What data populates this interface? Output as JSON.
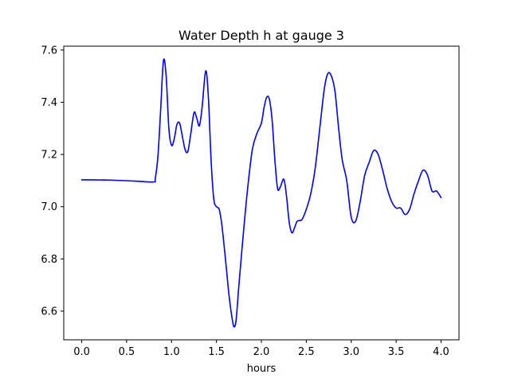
{
  "chart_data": {
    "type": "line",
    "title": "Water Depth h at gauge 3",
    "xlabel": "hours",
    "ylabel": "",
    "xlim": [
      -0.2,
      4.2
    ],
    "ylim": [
      6.49,
      7.615
    ],
    "xticks": [
      0.0,
      0.5,
      1.0,
      1.5,
      2.0,
      2.5,
      3.0,
      3.5,
      4.0
    ],
    "xtick_labels": [
      "0.0",
      "0.5",
      "1.0",
      "1.5",
      "2.0",
      "2.5",
      "3.0",
      "3.5",
      "4.0"
    ],
    "yticks": [
      6.6,
      6.8,
      7.0,
      7.2,
      7.4,
      7.6
    ],
    "ytick_labels": [
      "6.6",
      "6.8",
      "7.0",
      "7.2",
      "7.4",
      "7.6"
    ],
    "grid": false,
    "legend": "none",
    "series": [
      {
        "color": "#0000ff",
        "x": [
          0.0,
          0.3,
          0.6,
          0.8,
          0.82,
          0.85,
          0.88,
          0.91,
          0.94,
          0.97,
          1.0,
          1.03,
          1.06,
          1.09,
          1.12,
          1.15,
          1.18,
          1.21,
          1.25,
          1.28,
          1.31,
          1.34,
          1.38,
          1.41,
          1.44,
          1.47,
          1.5,
          1.53,
          1.56,
          1.6,
          1.64,
          1.68,
          1.7,
          1.72,
          1.75,
          1.8,
          1.85,
          1.9,
          1.95,
          2.0,
          2.03,
          2.06,
          2.09,
          2.12,
          2.15,
          2.18,
          2.21,
          2.25,
          2.28,
          2.31,
          2.34,
          2.37,
          2.4,
          2.45,
          2.5,
          2.55,
          2.6,
          2.65,
          2.7,
          2.74,
          2.78,
          2.82,
          2.86,
          2.9,
          2.95,
          3.0,
          3.05,
          3.1,
          3.15,
          3.2,
          3.25,
          3.3,
          3.35,
          3.4,
          3.45,
          3.5,
          3.55,
          3.6,
          3.65,
          3.7,
          3.75,
          3.8,
          3.85,
          3.9,
          3.95,
          4.0
        ],
        "y": [
          7.103,
          7.102,
          7.098,
          7.095,
          7.11,
          7.2,
          7.38,
          7.56,
          7.5,
          7.3,
          7.235,
          7.26,
          7.315,
          7.32,
          7.27,
          7.22,
          7.21,
          7.27,
          7.36,
          7.34,
          7.31,
          7.38,
          7.52,
          7.42,
          7.18,
          7.03,
          7.0,
          6.99,
          6.93,
          6.8,
          6.66,
          6.56,
          6.54,
          6.57,
          6.7,
          6.9,
          7.08,
          7.22,
          7.28,
          7.32,
          7.38,
          7.42,
          7.41,
          7.33,
          7.18,
          7.07,
          7.075,
          7.105,
          7.04,
          6.94,
          6.9,
          6.92,
          6.945,
          6.95,
          6.99,
          7.05,
          7.15,
          7.3,
          7.45,
          7.51,
          7.5,
          7.44,
          7.3,
          7.18,
          7.1,
          6.96,
          6.945,
          7.02,
          7.12,
          7.17,
          7.215,
          7.2,
          7.14,
          7.07,
          7.02,
          6.995,
          6.995,
          6.97,
          6.99,
          7.05,
          7.1,
          7.14,
          7.12,
          7.06,
          7.06,
          7.035
        ]
      }
    ]
  }
}
